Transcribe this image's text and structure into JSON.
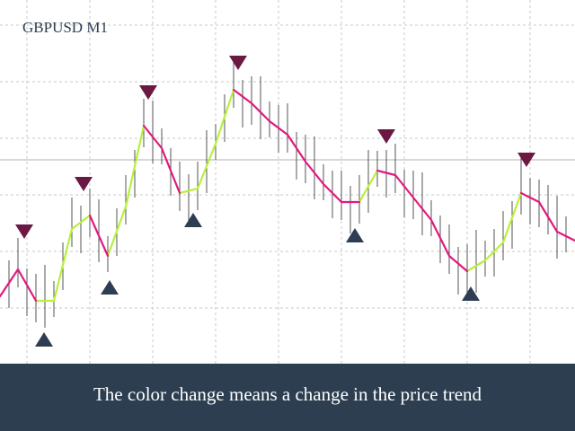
{
  "chart_data": {
    "type": "line",
    "title": "GBPUSD M1",
    "caption": "The color change means a change in the price trend",
    "xlim": [
      0,
      640
    ],
    "ylim": [
      0,
      405
    ],
    "x": [
      0,
      20,
      40,
      60,
      80,
      100,
      120,
      140,
      160,
      180,
      200,
      220,
      240,
      260,
      280,
      300,
      320,
      340,
      360,
      380,
      400,
      420,
      440,
      460,
      480,
      500,
      520,
      540,
      560,
      580,
      600,
      620,
      640
    ],
    "series": [
      {
        "color": "#b8f03c",
        "values": [
          null,
          null,
          70,
          70,
          150,
          165,
          null,
          null,
          null,
          null,
          190,
          195,
          245,
          305,
          null,
          null,
          null,
          null,
          null,
          null,
          180,
          215,
          null,
          null,
          null,
          null,
          103,
          115,
          135,
          190,
          null,
          null,
          null
        ]
      },
      {
        "color": "#b8f03c",
        "values": [
          null,
          null,
          null,
          null,
          null,
          null,
          120,
          175,
          265,
          null,
          null,
          null,
          null,
          null,
          null,
          null,
          null,
          null,
          null,
          null,
          null,
          null,
          null,
          null,
          null,
          null,
          null,
          null,
          null,
          null,
          null,
          null,
          null
        ]
      },
      {
        "color": "#e2187f",
        "values": [
          75,
          105,
          70,
          null,
          null,
          165,
          120,
          null,
          265,
          240,
          190,
          null,
          null,
          305,
          290,
          270,
          255,
          225,
          200,
          180,
          180,
          null,
          null,
          null,
          null,
          null,
          null,
          null,
          null,
          190,
          180,
          147,
          137
        ]
      },
      {
        "color": "#e2187f",
        "values": [
          null,
          null,
          null,
          null,
          null,
          null,
          null,
          null,
          null,
          null,
          null,
          null,
          null,
          null,
          null,
          null,
          null,
          null,
          null,
          null,
          null,
          215,
          210,
          185,
          160,
          120,
          103,
          null,
          null,
          null,
          null,
          null,
          null
        ]
      }
    ],
    "bars": {
      "color": "#555555",
      "x": [
        10,
        20,
        30,
        40,
        50,
        60,
        70,
        80,
        90,
        100,
        110,
        120,
        130,
        140,
        150,
        160,
        170,
        180,
        190,
        200,
        210,
        220,
        230,
        240,
        250,
        260,
        270,
        280,
        290,
        300,
        310,
        320,
        330,
        340,
        350,
        360,
        370,
        380,
        390,
        400,
        410,
        420,
        430,
        440,
        450,
        460,
        470,
        480,
        490,
        500,
        510,
        520,
        530,
        540,
        550,
        560,
        570,
        580,
        590,
        600,
        610,
        620,
        630
      ],
      "high": [
        115,
        140,
        106,
        100,
        110,
        92,
        135,
        185,
        176,
        195,
        183,
        142,
        173,
        210,
        238,
        295,
        293,
        262,
        240,
        225,
        211,
        225,
        260,
        267,
        300,
        340,
        316,
        320,
        320,
        292,
        288,
        290,
        258,
        255,
        253,
        222,
        215,
        215,
        198,
        210,
        238,
        237,
        238,
        245,
        216,
        215,
        213,
        182,
        165,
        155,
        130,
        133,
        149,
        137,
        150,
        170,
        181,
        230,
        207,
        205,
        199,
        187,
        164
      ],
      "low": [
        62,
        85,
        53,
        46,
        40,
        52,
        82,
        130,
        123,
        141,
        113,
        102,
        120,
        155,
        185,
        241,
        223,
        222,
        187,
        170,
        158,
        171,
        190,
        227,
        247,
        285,
        263,
        266,
        250,
        252,
        235,
        235,
        205,
        201,
        183,
        182,
        162,
        160,
        145,
        156,
        168,
        197,
        185,
        190,
        163,
        161,
        143,
        142,
        112,
        100,
        77,
        79,
        79,
        97,
        97,
        115,
        128,
        166,
        155,
        152,
        144,
        117,
        124
      ]
    },
    "signals": [
      {
        "marker": "down",
        "color": "#6b1843",
        "x": [
          27,
          93,
          165,
          265,
          430,
          586
        ],
        "values": [
          147,
          200,
          302,
          335,
          253,
          227
        ]
      },
      {
        "marker": "up",
        "color": "#2e3e52",
        "x": [
          49,
          122,
          215,
          395,
          524
        ],
        "values": [
          27,
          85,
          160,
          143,
          78
        ]
      }
    ]
  }
}
